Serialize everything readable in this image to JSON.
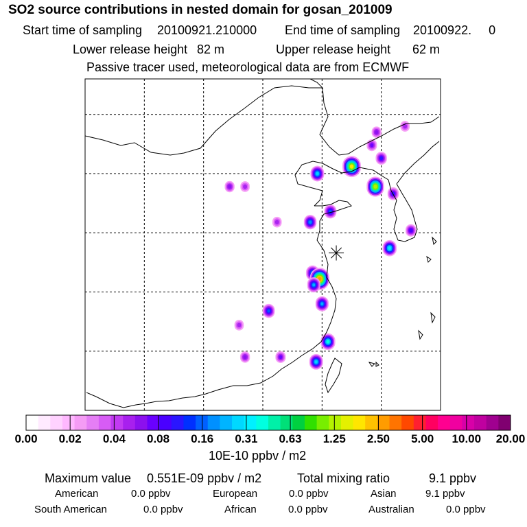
{
  "title": "SO2 source contributions in nested domain for gosan_201009",
  "sampling": {
    "start_label": "Start time of sampling",
    "start_value": "20100921.210000",
    "end_label": "End time of sampling",
    "end_value": "20100922.     0"
  },
  "release": {
    "lower_label": "Lower release height",
    "lower_value": "82 m",
    "upper_label": "Upper release height",
    "upper_value": "62 m"
  },
  "note": "Passive tracer used, meteorological data are from ECMWF",
  "colorbar": {
    "labels": [
      "0.00",
      "0.02",
      "0.04",
      "0.08",
      "0.16",
      "0.31",
      "0.63",
      "1.25",
      "2.50",
      "5.00",
      "10.00",
      "20.00"
    ],
    "colors": [
      "#ffffff",
      "#ffeaff",
      "#ffd2ff",
      "#ffb8ff",
      "#f59cf5",
      "#e57ef5",
      "#d75cf5",
      "#c23af2",
      "#a820ee",
      "#8c10ee",
      "#6a00ff",
      "#4a00ff",
      "#2a16ff",
      "#0030ff",
      "#0060ff",
      "#0090ff",
      "#00b4ff",
      "#00d8ff",
      "#00f0ff",
      "#00ffe0",
      "#00f0a8",
      "#00e078",
      "#00d040",
      "#30e000",
      "#78ee00",
      "#b4f200",
      "#e4f000",
      "#ffe600",
      "#ffc200",
      "#ff9c00",
      "#ff7400",
      "#ff4800",
      "#ff2030",
      "#ff0060",
      "#ff0090",
      "#f000a0",
      "#d800a8",
      "#c000a0",
      "#a00090",
      "#800070"
    ],
    "units": "10E-10 ppbv / m2"
  },
  "summary": {
    "max_label": "Maximum value",
    "max_value": "0.551E-09 ppbv / m2",
    "total_label": "Total mixing ratio",
    "total_value": "9.1 ppbv"
  },
  "regions": [
    {
      "name": "American",
      "value": "0.0 ppbv"
    },
    {
      "name": "European",
      "value": "0.0 ppbv"
    },
    {
      "name": "Asian",
      "value": "9.1 ppbv"
    },
    {
      "name": "South American",
      "value": "0.0 ppbv"
    },
    {
      "name": "African",
      "value": "0.0 ppbv"
    },
    {
      "name": "Australian",
      "value": "0.0 ppbv"
    }
  ],
  "plumes": [
    {
      "lon": 132.0,
      "lat": 44.0,
      "level": 8,
      "kind": "spot"
    },
    {
      "lon": 129.6,
      "lat": 43.5,
      "level": 9,
      "kind": "spot"
    },
    {
      "lon": 129.2,
      "lat": 42.4,
      "level": 10,
      "kind": "spot"
    },
    {
      "lon": 130.0,
      "lat": 41.3,
      "level": 12,
      "kind": "spot"
    },
    {
      "lon": 127.5,
      "lat": 40.6,
      "level": 27,
      "kind": "spot"
    },
    {
      "lon": 124.6,
      "lat": 40.0,
      "level": 17,
      "kind": "spot"
    },
    {
      "lon": 129.5,
      "lat": 38.9,
      "level": 25,
      "kind": "spot"
    },
    {
      "lon": 131.0,
      "lat": 38.3,
      "level": 12,
      "kind": "spot"
    },
    {
      "lon": 117.2,
      "lat": 38.9,
      "level": 9,
      "kind": "spot"
    },
    {
      "lon": 118.5,
      "lat": 38.9,
      "level": 8,
      "kind": "spot"
    },
    {
      "lon": 125.7,
      "lat": 36.8,
      "level": 14,
      "kind": "spot"
    },
    {
      "lon": 124.0,
      "lat": 35.9,
      "level": 15,
      "kind": "spot"
    },
    {
      "lon": 121.2,
      "lat": 35.9,
      "level": 8,
      "kind": "spot"
    },
    {
      "lon": 132.5,
      "lat": 35.2,
      "level": 11,
      "kind": "spot"
    },
    {
      "lon": 130.7,
      "lat": 33.7,
      "level": 18,
      "kind": "spot"
    },
    {
      "lon": 124.2,
      "lat": 31.6,
      "level": 16,
      "kind": "spot"
    },
    {
      "lon": 124.8,
      "lat": 31.1,
      "level": 29,
      "kind": "spot"
    },
    {
      "lon": 124.3,
      "lat": 30.6,
      "level": 16,
      "kind": "spot"
    },
    {
      "lon": 125.0,
      "lat": 29.0,
      "level": 16,
      "kind": "spot"
    },
    {
      "lon": 120.5,
      "lat": 28.4,
      "level": 14,
      "kind": "spot"
    },
    {
      "lon": 118.0,
      "lat": 27.2,
      "level": 8,
      "kind": "spot"
    },
    {
      "lon": 125.5,
      "lat": 25.8,
      "level": 19,
      "kind": "spot"
    },
    {
      "lon": 118.5,
      "lat": 24.5,
      "level": 9,
      "kind": "spot"
    },
    {
      "lon": 121.5,
      "lat": 24.5,
      "level": 10,
      "kind": "spot"
    },
    {
      "lon": 124.5,
      "lat": 24.1,
      "level": 17,
      "kind": "spot"
    }
  ],
  "source_marker": {
    "lon": 126.2,
    "lat": 33.3
  }
}
